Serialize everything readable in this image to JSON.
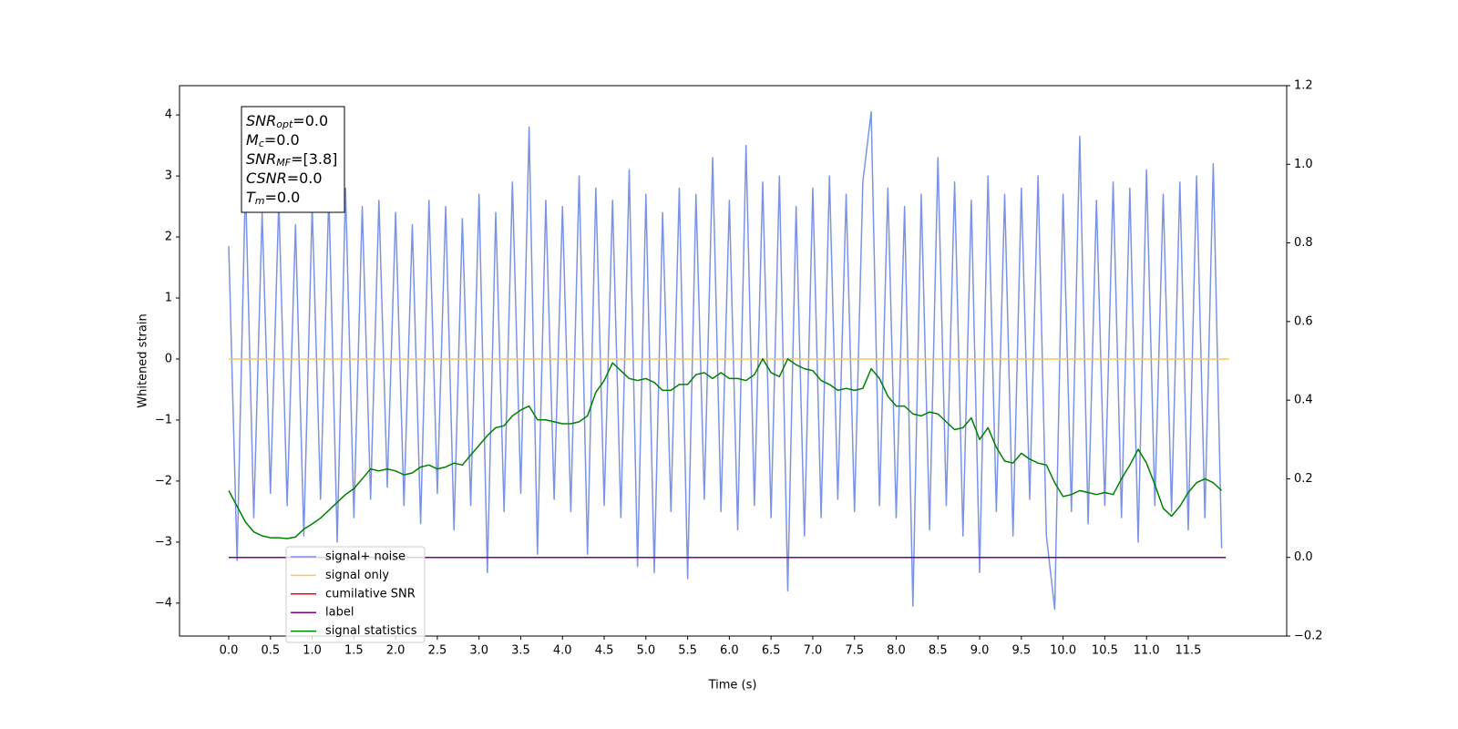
{
  "chart_data": {
    "type": "line",
    "xlabel": "Time (s)",
    "ylabel": "Whitened strain",
    "xlim": [
      -0.59,
      12.68
    ],
    "ylim": [
      -4.54,
      4.48
    ],
    "y2lim": [
      -0.2,
      1.2
    ],
    "xticks": [
      {
        "value": 0,
        "label": "0.0"
      },
      0.5,
      {
        "value": 1,
        "label": "1.0"
      },
      1.5,
      {
        "value": 2,
        "label": "2.0"
      },
      2.5,
      {
        "value": 3,
        "label": "3.0"
      },
      3.5,
      {
        "value": 4,
        "label": "4.0"
      },
      4.5,
      {
        "value": 5,
        "label": "5.0"
      },
      5.5,
      {
        "value": 6,
        "label": "6.0"
      },
      6.5,
      {
        "value": 7,
        "label": "7.0"
      },
      7.5,
      {
        "value": 8,
        "label": "8.0"
      },
      8.5,
      {
        "value": 9,
        "label": "9.0"
      },
      9.5,
      {
        "value": 10,
        "label": "10.0"
      },
      10.5,
      {
        "value": 11,
        "label": "11.0"
      },
      11.5
    ],
    "yticks": [
      {
        "value": -4,
        "label": "−4"
      },
      {
        "value": -3,
        "label": "−3"
      },
      {
        "value": -2,
        "label": "−2"
      },
      {
        "value": -1,
        "label": "−1"
      },
      0,
      1,
      2,
      3,
      4
    ],
    "y2ticks": [
      {
        "value": -0.2,
        "label": "−0.2"
      },
      {
        "value": 0,
        "label": "0.0"
      },
      0.2,
      0.4,
      0.6,
      0.8,
      {
        "value": 1,
        "label": "1.0"
      },
      1.2
    ],
    "grid": false,
    "legend": "lower left",
    "annotation": [
      {
        "symbol": "SNR",
        "sub": "opt",
        "text": "=0.0"
      },
      {
        "symbol": "M",
        "sub": "c",
        "text": "=0.0"
      },
      {
        "symbol": "SNR",
        "sub": "MF",
        "text": "=[3.8]"
      },
      {
        "symbol": "CSNR",
        "text": "=0.0"
      },
      {
        "symbol": "T",
        "sub": "m",
        "text": "=0.0"
      }
    ],
    "x": [
      0,
      0.1,
      0.2,
      0.3,
      0.4,
      0.5,
      0.6,
      0.7,
      0.8,
      0.9,
      1,
      1.1,
      1.2,
      1.3,
      1.4,
      1.5,
      1.6,
      1.7,
      1.8,
      1.9,
      2,
      2.1,
      2.2,
      2.3,
      2.4,
      2.5,
      2.6,
      2.7,
      2.8,
      2.9,
      3,
      3.1,
      3.2,
      3.3,
      3.4,
      3.5,
      3.6,
      3.7,
      3.8,
      3.9,
      4,
      4.1,
      4.2,
      4.3,
      4.4,
      4.5,
      4.6,
      4.7,
      4.8,
      4.9,
      5,
      5.1,
      5.2,
      5.3,
      5.4,
      5.5,
      5.6,
      5.7,
      5.8,
      5.9,
      6,
      6.1,
      6.2,
      6.3,
      6.4,
      6.5,
      6.6,
      6.7,
      6.8,
      6.9,
      7,
      7.1,
      7.2,
      7.3,
      7.4,
      7.5,
      7.6,
      7.7,
      7.8,
      7.9,
      8,
      8.1,
      8.2,
      8.3,
      8.4,
      8.5,
      8.6,
      8.7,
      8.8,
      8.9,
      9,
      9.1,
      9.2,
      9.3,
      9.4,
      9.5,
      9.6,
      9.7,
      9.8,
      9.9,
      10,
      10.1,
      10.2,
      10.3,
      10.4,
      10.5,
      10.6,
      10.7,
      10.8,
      10.9,
      11,
      11.1,
      11.2,
      11.3,
      11.4,
      11.5,
      11.6,
      11.7,
      11.8,
      11.9
    ],
    "series": [
      {
        "name": "signal+ noise",
        "color": "#7b93e6",
        "values": [
          1.85,
          -3.3,
          2.9,
          -2.6,
          2.4,
          -2.2,
          2.6,
          -2.4,
          2.2,
          -2.9,
          2.5,
          -2.3,
          2.7,
          -3.0,
          2.8,
          -2.6,
          2.5,
          -2.3,
          2.6,
          -2.1,
          2.4,
          -2.4,
          2.2,
          -2.7,
          2.6,
          -2.2,
          2.5,
          -2.8,
          2.3,
          -2.4,
          2.7,
          -3.5,
          2.4,
          -2.5,
          2.9,
          -2.2,
          3.8,
          -3.2,
          2.6,
          -2.3,
          2.5,
          -2.5,
          3.0,
          -3.2,
          2.8,
          -2.4,
          2.6,
          -2.6,
          3.1,
          -3.4,
          2.7,
          -3.5,
          2.4,
          -2.5,
          2.8,
          -3.6,
          2.7,
          -2.3,
          3.3,
          -2.5,
          2.6,
          -2.8,
          3.5,
          -2.4,
          2.9,
          -2.6,
          3.0,
          -3.8,
          2.5,
          -2.9,
          2.8,
          -2.6,
          3.0,
          -2.3,
          2.7,
          -2.5,
          2.9,
          4.05,
          -2.4,
          2.8,
          -2.6,
          2.5,
          -4.05,
          2.7,
          -2.8,
          3.3,
          -2.4,
          2.9,
          -2.9,
          2.6,
          -3.5,
          3.0,
          -2.5,
          2.7,
          -2.9,
          2.8,
          -2.3,
          3.0,
          -2.9,
          -4.1,
          2.7,
          -2.5,
          3.65,
          -2.7,
          2.6,
          -2.4,
          2.9,
          -2.6,
          2.8,
          -3.0,
          3.1,
          -2.4,
          2.7,
          -2.5,
          2.9,
          -2.8,
          3.0,
          -2.6,
          3.2,
          -3.1
        ]
      },
      {
        "name": "signal only",
        "color": "#ffc65c",
        "x": [
          0,
          11.99
        ],
        "values": [
          0,
          0
        ]
      },
      {
        "name": "cumilative SNR",
        "color": "#ff0000"
      },
      {
        "name": "label",
        "color": "#800080",
        "axis": "y2",
        "x": [
          0,
          11.95
        ],
        "values": [
          0,
          0
        ]
      },
      {
        "name": "signal statistics",
        "color": "#008000",
        "axis": "y2",
        "values": [
          0.17,
          0.13,
          0.09,
          0.065,
          0.055,
          0.05,
          0.05,
          0.048,
          0.052,
          0.072,
          0.085,
          0.1,
          0.12,
          0.14,
          0.16,
          0.175,
          0.2,
          0.225,
          0.22,
          0.225,
          0.22,
          0.21,
          0.215,
          0.23,
          0.235,
          0.225,
          0.23,
          0.24,
          0.235,
          0.26,
          0.285,
          0.31,
          0.33,
          0.335,
          0.36,
          0.375,
          0.385,
          0.35,
          0.35,
          0.345,
          0.34,
          0.34,
          0.345,
          0.36,
          0.42,
          0.45,
          0.495,
          0.475,
          0.455,
          0.45,
          0.455,
          0.445,
          0.425,
          0.425,
          0.44,
          0.44,
          0.465,
          0.47,
          0.455,
          0.47,
          0.455,
          0.455,
          0.45,
          0.465,
          0.505,
          0.47,
          0.46,
          0.505,
          0.49,
          0.48,
          0.475,
          0.45,
          0.44,
          0.425,
          0.43,
          0.425,
          0.43,
          0.48,
          0.455,
          0.41,
          0.385,
          0.385,
          0.365,
          0.36,
          0.37,
          0.365,
          0.345,
          0.325,
          0.33,
          0.355,
          0.3,
          0.33,
          0.28,
          0.245,
          0.24,
          0.265,
          0.25,
          0.24,
          0.235,
          0.19,
          0.155,
          0.16,
          0.17,
          0.165,
          0.16,
          0.165,
          0.16,
          0.2,
          0.235,
          0.275,
          0.24,
          0.185,
          0.125,
          0.105,
          0.13,
          0.165,
          0.19,
          0.2,
          0.19,
          0.17
        ]
      }
    ]
  }
}
